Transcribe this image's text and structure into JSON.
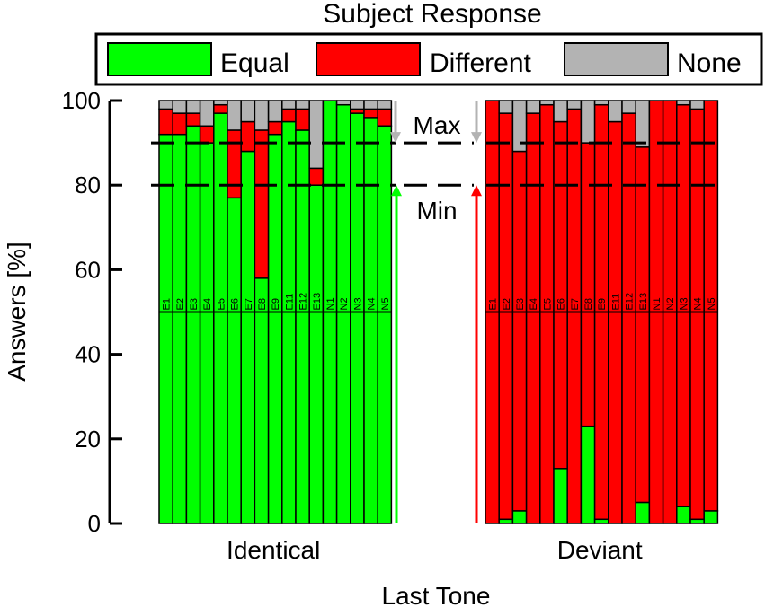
{
  "chart_data": {
    "type": "bar",
    "stacked": true,
    "title": "Subject  Response",
    "xlabel": "Last Tone",
    "ylabel": "Answers [%]",
    "ylim": [
      0,
      100
    ],
    "yticks": [
      0,
      20,
      40,
      60,
      80,
      100
    ],
    "legend": {
      "placement": "top",
      "entries": [
        {
          "name": "Equal",
          "color": "#00ff00"
        },
        {
          "name": "Different",
          "color": "#ff0000"
        },
        {
          "name": "None",
          "color": "#b3b3b3"
        }
      ]
    },
    "bar_labels": [
      "E1",
      "E2",
      "E3",
      "E4",
      "E5",
      "E6",
      "E7",
      "E8",
      "E9",
      "E11",
      "E12",
      "E13",
      "N1",
      "N2",
      "N3",
      "N4",
      "N5"
    ],
    "groups": [
      {
        "name": "Identical",
        "series": [
          {
            "name": "Equal",
            "values": [
              92,
              92,
              94,
              90,
              97,
              77,
              88,
              58,
              92,
              95,
              93,
              80,
              100,
              99,
              97,
              96,
              94
            ]
          },
          {
            "name": "Different",
            "values": [
              6,
              5,
              3,
              4,
              2,
              16,
              7,
              35,
              3,
              3,
              5,
              4,
              0,
              0,
              1,
              2,
              4
            ]
          },
          {
            "name": "None",
            "values": [
              2,
              3,
              3,
              6,
              1,
              7,
              5,
              7,
              5,
              2,
              2,
              16,
              0,
              1,
              2,
              2,
              2
            ]
          }
        ]
      },
      {
        "name": "Deviant",
        "series": [
          {
            "name": "Equal",
            "values": [
              0,
              1,
              3,
              0,
              0,
              13,
              0,
              23,
              1,
              0,
              0,
              5,
              0,
              0,
              4,
              1,
              3
            ]
          },
          {
            "name": "Different",
            "values": [
              100,
              96,
              85,
              97,
              99,
              82,
              98,
              67,
              98,
              95,
              97,
              84,
              100,
              100,
              95,
              97,
              97
            ]
          },
          {
            "name": "None",
            "values": [
              0,
              3,
              12,
              3,
              1,
              5,
              2,
              10,
              1,
              5,
              3,
              11,
              0,
              0,
              1,
              2,
              0
            ]
          }
        ]
      }
    ],
    "reference_lines": [
      {
        "label": "Max",
        "value": 90
      },
      {
        "label": "Min",
        "value": 80
      }
    ],
    "midline_value": 50
  }
}
